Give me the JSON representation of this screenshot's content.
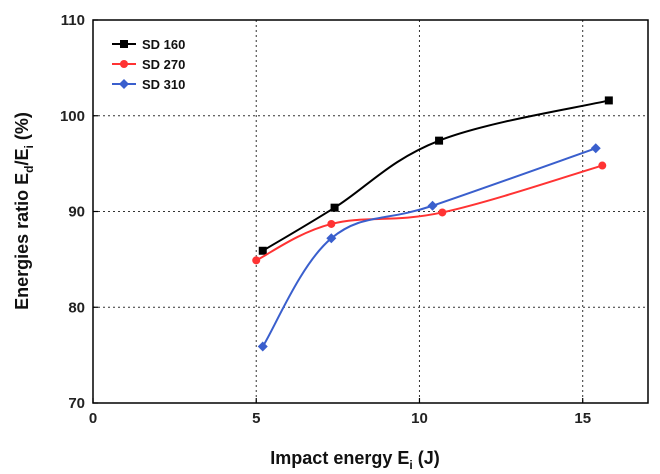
{
  "chart_data": {
    "type": "line",
    "xlabel": {
      "main": "Impact energy E",
      "sub": "i",
      "tail": " (J)"
    },
    "ylabel": {
      "prefix": "Energies ratio E",
      "sub1": "d",
      "mid": "/E",
      "sub2": "i",
      "tail": " (%)"
    },
    "xlim": [
      0,
      17
    ],
    "ylim": [
      70,
      110
    ],
    "xticks": [
      0,
      5,
      10,
      15
    ],
    "yticks": [
      70,
      80,
      90,
      100,
      110
    ],
    "grid": "dotted",
    "legend_position": "top-left",
    "series": [
      {
        "name": "SD 160",
        "color": "#000000",
        "marker": "square",
        "x": [
          5.2,
          7.4,
          10.6,
          15.8
        ],
        "y": [
          85.9,
          90.4,
          97.4,
          101.6
        ]
      },
      {
        "name": "SD 270",
        "color": "#ff3333",
        "marker": "circle",
        "x": [
          5.0,
          7.3,
          10.7,
          15.6
        ],
        "y": [
          84.9,
          88.7,
          89.9,
          94.8
        ]
      },
      {
        "name": "SD 310",
        "color": "#3a5fcd",
        "marker": "diamond",
        "x": [
          5.2,
          7.3,
          10.4,
          15.4
        ],
        "y": [
          75.9,
          87.2,
          90.6,
          96.6
        ]
      }
    ]
  }
}
